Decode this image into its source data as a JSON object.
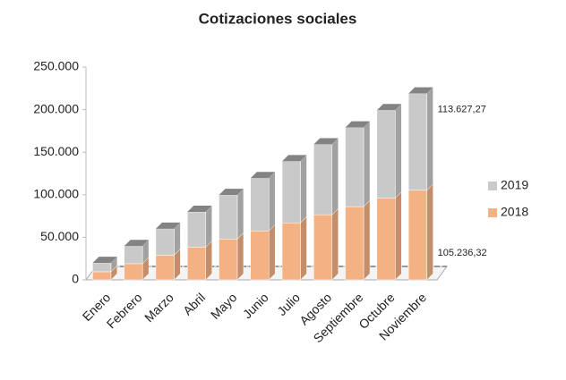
{
  "chart_data": {
    "type": "bar3d_stacked",
    "title": "Cotizaciones sociales",
    "categories": [
      "Enero",
      "Febrero",
      "Marzo",
      "Abril",
      "Mayo",
      "Junio",
      "Julio",
      "Agosto",
      "Septiembre",
      "Octubre",
      "Noviembre"
    ],
    "series": [
      {
        "name": "2018",
        "color": "#f4b183",
        "values": [
          9500,
          19000,
          29000,
          38500,
          48000,
          57500,
          67000,
          76500,
          86000,
          96000,
          105236.32
        ],
        "value_labels": [
          null,
          null,
          null,
          null,
          null,
          null,
          null,
          null,
          null,
          null,
          "105.236,32"
        ]
      },
      {
        "name": "2019",
        "color": "#c9c9c9",
        "values": [
          10300,
          20700,
          31000,
          41300,
          51600,
          62000,
          72300,
          82600,
          93000,
          103300,
          113627.27
        ],
        "value_labels": [
          null,
          null,
          null,
          null,
          null,
          null,
          null,
          null,
          null,
          null,
          "113.627,27"
        ]
      }
    ],
    "ylim": [
      0,
      250000
    ],
    "yticks": [
      0,
      {
        "value": 50000,
        "label": "50.000"
      },
      {
        "value": 100000,
        "label": "100.000"
      },
      {
        "value": 150000,
        "label": "150.000"
      },
      {
        "value": 200000,
        "label": "200.000"
      },
      {
        "value": 250000,
        "label": "250.000"
      }
    ],
    "legend": "right"
  }
}
